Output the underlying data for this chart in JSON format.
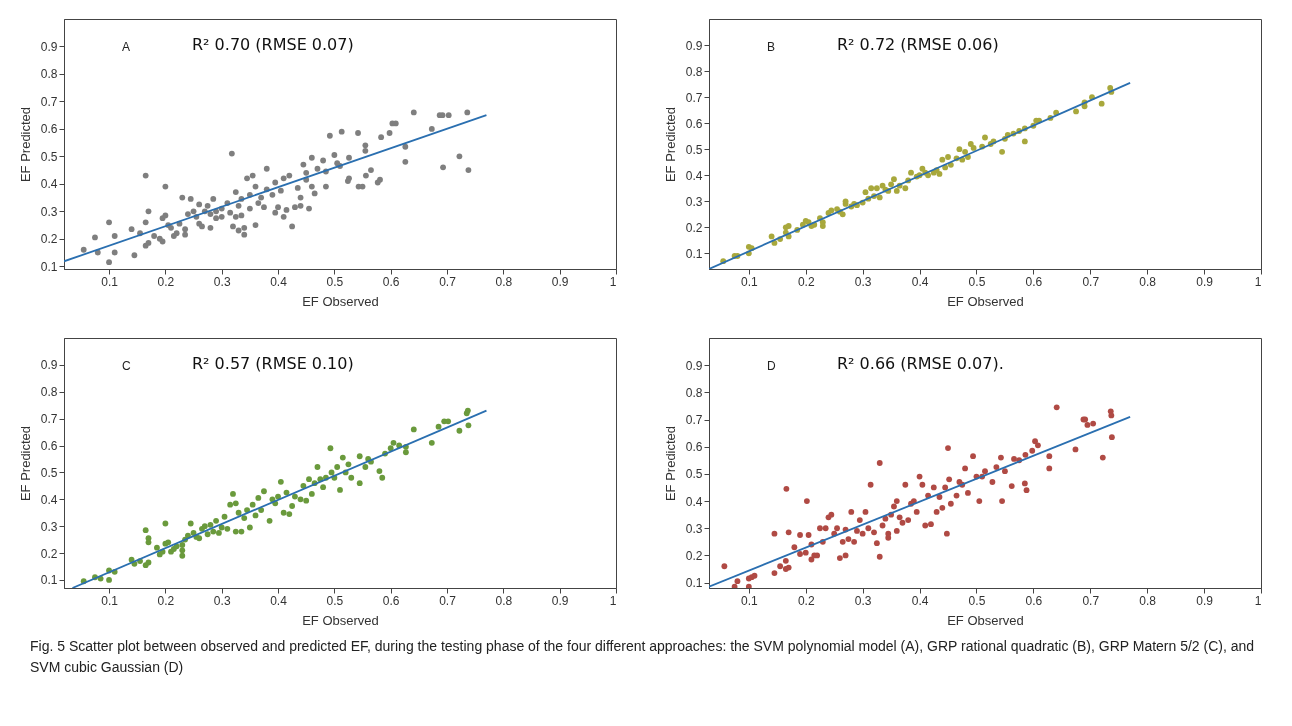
{
  "chart_data": [
    {
      "type": "scatter",
      "xlabel": "EF Observed",
      "ylabel": "EF Predicted",
      "xlim": [
        0.02,
        1
      ],
      "ylim": [
        0.09,
        1
      ],
      "xticks": [
        0.1,
        0.2,
        0.3,
        0.4,
        0.5,
        0.6,
        0.7,
        0.8,
        0.9,
        1
      ],
      "yticks": [
        0.1,
        0.2,
        0.3,
        0.4,
        0.5,
        0.6,
        0.7,
        0.8,
        0.9
      ],
      "grid": false,
      "marker": "circle",
      "annotations": [
        "A",
        "R² 0.70 (RMSE 0.07)"
      ],
      "series": [
        {
          "type": "scatter",
          "color": "#7f7f7f",
          "x": [
            0.055,
            0.08,
            0.075,
            0.1,
            0.1,
            0.11,
            0.11,
            0.14,
            0.145,
            0.155,
            0.165,
            0.165,
            0.165,
            0.17,
            0.17,
            0.18,
            0.19,
            0.195,
            0.195,
            0.2,
            0.2,
            0.205,
            0.21,
            0.215,
            0.22,
            0.225,
            0.23,
            0.235,
            0.235,
            0.24,
            0.245,
            0.25,
            0.255,
            0.26,
            0.26,
            0.265,
            0.27,
            0.275,
            0.28,
            0.28,
            0.285,
            0.29,
            0.29,
            0.3,
            0.3,
            0.31,
            0.315,
            0.318,
            0.32,
            0.325,
            0.325,
            0.33,
            0.33,
            0.335,
            0.335,
            0.34,
            0.34,
            0.345,
            0.35,
            0.35,
            0.355,
            0.36,
            0.36,
            0.365,
            0.37,
            0.375,
            0.38,
            0.38,
            0.39,
            0.395,
            0.395,
            0.4,
            0.405,
            0.41,
            0.41,
            0.415,
            0.42,
            0.425,
            0.43,
            0.435,
            0.44,
            0.44,
            0.445,
            0.45,
            0.45,
            0.455,
            0.46,
            0.46,
            0.465,
            0.47,
            0.48,
            0.485,
            0.485,
            0.492,
            0.5,
            0.505,
            0.51,
            0.513,
            0.524,
            0.526,
            0.526,
            0.542,
            0.543,
            0.55,
            0.555,
            0.555,
            0.556,
            0.565,
            0.577,
            0.581,
            0.583,
            0.598,
            0.603,
            0.609,
            0.626,
            0.626,
            0.641,
            0.673,
            0.687,
            0.692,
            0.703,
            0.693,
            0.722,
            0.736,
            0.738
          ],
          "values": [
            0.16,
            0.15,
            0.205,
            0.26,
            0.115,
            0.21,
            0.15,
            0.235,
            0.14,
            0.22,
            0.43,
            0.26,
            0.175,
            0.185,
            0.3,
            0.21,
            0.2,
            0.275,
            0.19,
            0.39,
            0.285,
            0.25,
            0.24,
            0.21,
            0.22,
            0.255,
            0.35,
            0.215,
            0.235,
            0.29,
            0.345,
            0.3,
            0.28,
            0.325,
            0.255,
            0.245,
            0.3,
            0.32,
            0.24,
            0.29,
            0.345,
            0.3,
            0.275,
            0.31,
            0.28,
            0.33,
            0.295,
            0.51,
            0.245,
            0.37,
            0.28,
            0.23,
            0.32,
            0.285,
            0.345,
            0.24,
            0.215,
            0.42,
            0.36,
            0.31,
            0.43,
            0.39,
            0.25,
            0.33,
            0.35,
            0.315,
            0.455,
            0.38,
            0.36,
            0.405,
            0.295,
            0.315,
            0.375,
            0.42,
            0.28,
            0.305,
            0.43,
            0.245,
            0.315,
            0.385,
            0.35,
            0.32,
            0.47,
            0.44,
            0.415,
            0.31,
            0.495,
            0.39,
            0.365,
            0.455,
            0.485,
            0.445,
            0.39,
            0.575,
            0.505,
            0.475,
            0.465,
            0.59,
            0.41,
            0.42,
            0.495,
            0.585,
            0.39,
            0.39,
            0.54,
            0.52,
            0.43,
            0.45,
            0.405,
            0.415,
            0.57,
            0.585,
            0.62,
            0.62,
            0.535,
            0.48,
            0.66,
            0.6,
            0.65,
            0.65,
            0.65,
            0.46,
            0.5,
            0.66,
            0.45
          ]
        },
        {
          "type": "line",
          "marker": "none",
          "color": "#2a6fb0",
          "x": [
            0.02,
            0.77
          ],
          "values": [
            0.118,
            0.65
          ]
        }
      ]
    },
    {
      "type": "scatter",
      "xlabel": "EF Observed",
      "ylabel": "EF Predicted",
      "xlim": [
        0.03,
        1
      ],
      "ylim": [
        0.04,
        1
      ],
      "xticks": [
        0.1,
        0.2,
        0.3,
        0.4,
        0.5,
        0.6,
        0.7,
        0.8,
        0.9,
        1
      ],
      "yticks": [
        0.1,
        0.2,
        0.3,
        0.4,
        0.5,
        0.6,
        0.7,
        0.8,
        0.9
      ],
      "grid": false,
      "marker": "circle",
      "annotations": [
        "B",
        "R² 0.72 (RMSE 0.06)"
      ],
      "series": [
        {
          "type": "scatter",
          "color": "#a8a83c",
          "x": [
            0.055,
            0.075,
            0.08,
            0.1,
            0.1,
            0.105,
            0.14,
            0.145,
            0.155,
            0.165,
            0.165,
            0.17,
            0.17,
            0.185,
            0.195,
            0.2,
            0.205,
            0.21,
            0.215,
            0.225,
            0.23,
            0.23,
            0.24,
            0.245,
            0.255,
            0.26,
            0.265,
            0.27,
            0.27,
            0.28,
            0.285,
            0.29,
            0.3,
            0.305,
            0.31,
            0.315,
            0.32,
            0.325,
            0.33,
            0.335,
            0.34,
            0.345,
            0.35,
            0.355,
            0.36,
            0.365,
            0.375,
            0.38,
            0.385,
            0.395,
            0.4,
            0.405,
            0.41,
            0.415,
            0.425,
            0.43,
            0.435,
            0.44,
            0.445,
            0.45,
            0.455,
            0.465,
            0.47,
            0.475,
            0.48,
            0.485,
            0.49,
            0.495,
            0.51,
            0.515,
            0.525,
            0.53,
            0.545,
            0.55,
            0.555,
            0.565,
            0.575,
            0.585,
            0.585,
            0.6,
            0.605,
            0.61,
            0.63,
            0.64,
            0.675,
            0.69,
            0.69,
            0.703,
            0.72,
            0.735,
            0.737
          ],
          "values": [
            0.07,
            0.09,
            0.09,
            0.1,
            0.125,
            0.12,
            0.165,
            0.14,
            0.155,
            0.18,
            0.2,
            0.165,
            0.205,
            0.19,
            0.21,
            0.225,
            0.22,
            0.205,
            0.21,
            0.235,
            0.205,
            0.22,
            0.255,
            0.265,
            0.27,
            0.26,
            0.25,
            0.29,
            0.3,
            0.28,
            0.29,
            0.285,
            0.295,
            0.335,
            0.31,
            0.35,
            0.32,
            0.35,
            0.315,
            0.36,
            0.345,
            0.34,
            0.365,
            0.385,
            0.34,
            0.36,
            0.35,
            0.38,
            0.41,
            0.395,
            0.4,
            0.425,
            0.41,
            0.4,
            0.41,
            0.42,
            0.405,
            0.46,
            0.43,
            0.47,
            0.44,
            0.465,
            0.5,
            0.46,
            0.49,
            0.47,
            0.52,
            0.505,
            0.51,
            0.545,
            0.52,
            0.53,
            0.49,
            0.54,
            0.555,
            0.56,
            0.57,
            0.53,
            0.58,
            0.59,
            0.61,
            0.61,
            0.62,
            0.64,
            0.645,
            0.665,
            0.68,
            0.7,
            0.675,
            0.735,
            0.72
          ]
        },
        {
          "type": "line",
          "marker": "none",
          "color": "#2a6fb0",
          "x": [
            0.03,
            0.77
          ],
          "values": [
            0.04,
            0.755
          ]
        }
      ]
    },
    {
      "type": "scatter",
      "xlabel": "EF Observed",
      "ylabel": "EF Predicted",
      "xlim": [
        0.02,
        1
      ],
      "ylim": [
        0.07,
        1
      ],
      "xticks": [
        0.1,
        0.2,
        0.3,
        0.4,
        0.5,
        0.6,
        0.7,
        0.8,
        0.9,
        1
      ],
      "yticks": [
        0.1,
        0.2,
        0.3,
        0.4,
        0.5,
        0.6,
        0.7,
        0.8,
        0.9
      ],
      "grid": false,
      "marker": "circle",
      "annotations": [
        "C",
        "R² 0.57 (RMSE 0.10)"
      ],
      "series": [
        {
          "type": "scatter",
          "color": "#6a9a3c",
          "x": [
            0.055,
            0.075,
            0.085,
            0.1,
            0.1,
            0.11,
            0.14,
            0.145,
            0.155,
            0.165,
            0.165,
            0.17,
            0.17,
            0.17,
            0.185,
            0.19,
            0.195,
            0.2,
            0.2,
            0.205,
            0.21,
            0.215,
            0.22,
            0.23,
            0.23,
            0.23,
            0.235,
            0.24,
            0.245,
            0.25,
            0.255,
            0.26,
            0.265,
            0.27,
            0.275,
            0.28,
            0.285,
            0.29,
            0.295,
            0.3,
            0.305,
            0.31,
            0.315,
            0.32,
            0.325,
            0.325,
            0.33,
            0.335,
            0.34,
            0.345,
            0.35,
            0.355,
            0.36,
            0.365,
            0.37,
            0.375,
            0.385,
            0.39,
            0.395,
            0.4,
            0.405,
            0.41,
            0.415,
            0.42,
            0.425,
            0.43,
            0.44,
            0.445,
            0.45,
            0.455,
            0.46,
            0.465,
            0.47,
            0.475,
            0.48,
            0.485,
            0.493,
            0.495,
            0.5,
            0.505,
            0.51,
            0.515,
            0.52,
            0.525,
            0.53,
            0.545,
            0.545,
            0.555,
            0.56,
            0.565,
            0.58,
            0.585,
            0.59,
            0.6,
            0.605,
            0.615,
            0.627,
            0.627,
            0.641,
            0.673,
            0.685,
            0.695,
            0.702,
            0.722,
            0.735,
            0.737,
            0.738
          ],
          "values": [
            0.095,
            0.11,
            0.105,
            0.1,
            0.135,
            0.13,
            0.175,
            0.16,
            0.17,
            0.155,
            0.285,
            0.24,
            0.255,
            0.165,
            0.22,
            0.195,
            0.205,
            0.31,
            0.235,
            0.24,
            0.205,
            0.215,
            0.225,
            0.19,
            0.21,
            0.23,
            0.25,
            0.265,
            0.31,
            0.275,
            0.26,
            0.255,
            0.29,
            0.3,
            0.27,
            0.305,
            0.28,
            0.32,
            0.275,
            0.295,
            0.335,
            0.29,
            0.38,
            0.42,
            0.385,
            0.28,
            0.35,
            0.28,
            0.33,
            0.36,
            0.295,
            0.38,
            0.34,
            0.405,
            0.36,
            0.43,
            0.32,
            0.4,
            0.385,
            0.41,
            0.465,
            0.35,
            0.425,
            0.345,
            0.375,
            0.41,
            0.4,
            0.45,
            0.395,
            0.475,
            0.42,
            0.46,
            0.52,
            0.475,
            0.445,
            0.48,
            0.59,
            0.5,
            0.48,
            0.52,
            0.435,
            0.555,
            0.5,
            0.53,
            0.48,
            0.46,
            0.56,
            0.52,
            0.55,
            0.54,
            0.505,
            0.48,
            0.57,
            0.59,
            0.61,
            0.6,
            0.575,
            0.595,
            0.66,
            0.61,
            0.67,
            0.69,
            0.69,
            0.655,
            0.72,
            0.73,
            0.675
          ]
        },
        {
          "type": "line",
          "marker": "none",
          "color": "#2a6fb0",
          "x": [
            0.035,
            0.77
          ],
          "values": [
            0.07,
            0.73
          ]
        }
      ]
    },
    {
      "type": "scatter",
      "xlabel": "EF Observed",
      "ylabel": "EF Predicted",
      "xlim": [
        0.03,
        1
      ],
      "ylim": [
        0.08,
        1
      ],
      "xticks": [
        0.1,
        0.2,
        0.3,
        0.4,
        0.5,
        0.6,
        0.7,
        0.8,
        0.9,
        1
      ],
      "yticks": [
        0.1,
        0.2,
        0.3,
        0.4,
        0.5,
        0.6,
        0.7,
        0.8,
        0.9
      ],
      "grid": false,
      "marker": "circle",
      "annotations": [
        "D",
        "R² 0.66 (RMSE 0.07).",
        "Fig. 5  Scatter plot between observed and predicted EF, during the testing phase of the four different approaches: the SVM polynomial model (A), GRP rational quadratic (B), GRP Matern 5/2 (C), and SVM cubic Gaussian (D)"
      ],
      "series": [
        {
          "type": "scatter",
          "color": "#b04a44",
          "x": [
            0.057,
            0.075,
            0.08,
            0.1,
            0.1,
            0.105,
            0.11,
            0.145,
            0.145,
            0.155,
            0.165,
            0.165,
            0.166,
            0.17,
            0.17,
            0.18,
            0.19,
            0.19,
            0.2,
            0.202,
            0.205,
            0.21,
            0.21,
            0.215,
            0.22,
            0.225,
            0.23,
            0.235,
            0.24,
            0.245,
            0.25,
            0.255,
            0.26,
            0.265,
            0.27,
            0.27,
            0.275,
            0.28,
            0.285,
            0.29,
            0.295,
            0.3,
            0.305,
            0.31,
            0.314,
            0.32,
            0.325,
            0.33,
            0.33,
            0.335,
            0.34,
            0.345,
            0.345,
            0.35,
            0.355,
            0.36,
            0.36,
            0.365,
            0.37,
            0.375,
            0.38,
            0.385,
            0.39,
            0.395,
            0.4,
            0.405,
            0.41,
            0.415,
            0.42,
            0.425,
            0.43,
            0.435,
            0.44,
            0.445,
            0.448,
            0.45,
            0.452,
            0.455,
            0.465,
            0.47,
            0.475,
            0.48,
            0.485,
            0.494,
            0.5,
            0.505,
            0.51,
            0.515,
            0.528,
            0.535,
            0.543,
            0.545,
            0.55,
            0.562,
            0.566,
            0.575,
            0.585,
            0.588,
            0.586,
            0.598,
            0.603,
            0.608,
            0.628,
            0.628,
            0.641,
            0.674,
            0.688,
            0.691,
            0.695,
            0.705,
            0.722,
            0.736,
            0.737,
            0.738
          ],
          "values": [
            0.16,
            0.085,
            0.105,
            0.085,
            0.115,
            0.12,
            0.125,
            0.28,
            0.135,
            0.16,
            0.15,
            0.18,
            0.445,
            0.285,
            0.155,
            0.23,
            0.205,
            0.275,
            0.21,
            0.4,
            0.275,
            0.24,
            0.185,
            0.2,
            0.2,
            0.3,
            0.25,
            0.3,
            0.34,
            0.35,
            0.28,
            0.3,
            0.19,
            0.25,
            0.295,
            0.2,
            0.26,
            0.36,
            0.25,
            0.29,
            0.33,
            0.28,
            0.36,
            0.3,
            0.46,
            0.285,
            0.245,
            0.54,
            0.195,
            0.31,
            0.335,
            0.28,
            0.265,
            0.35,
            0.38,
            0.4,
            0.29,
            0.34,
            0.32,
            0.46,
            0.33,
            0.39,
            0.4,
            0.36,
            0.49,
            0.46,
            0.31,
            0.42,
            0.315,
            0.45,
            0.36,
            0.415,
            0.375,
            0.45,
            0.28,
            0.595,
            0.48,
            0.39,
            0.42,
            0.47,
            0.46,
            0.52,
            0.43,
            0.565,
            0.49,
            0.4,
            0.49,
            0.51,
            0.47,
            0.525,
            0.56,
            0.4,
            0.51,
            0.455,
            0.555,
            0.55,
            0.465,
            0.44,
            0.57,
            0.585,
            0.62,
            0.605,
            0.565,
            0.52,
            0.745,
            0.59,
            0.7,
            0.7,
            0.68,
            0.685,
            0.56,
            0.73,
            0.715,
            0.635
          ]
        },
        {
          "type": "line",
          "marker": "none",
          "color": "#2a6fb0",
          "x": [
            0.03,
            0.77
          ],
          "values": [
            0.085,
            0.71
          ]
        }
      ]
    }
  ]
}
